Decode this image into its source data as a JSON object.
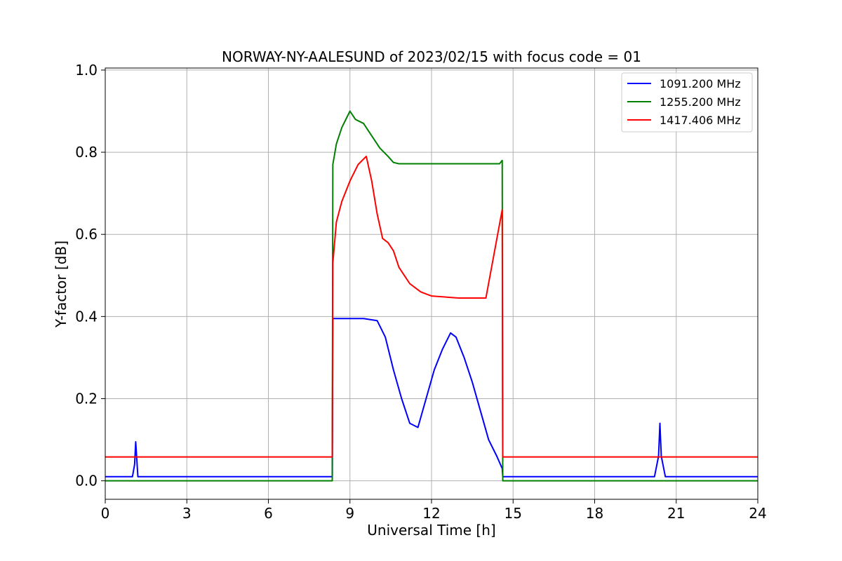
{
  "chart_data": {
    "type": "line",
    "title": "NORWAY-NY-AALESUND of 2023/02/15 with focus code = 01",
    "xlabel": "Universal Time [h]",
    "ylabel": "Y-factor [dB]",
    "xlim": [
      0,
      24
    ],
    "ylim": [
      -0.045,
      1.005
    ],
    "xticks": [
      0,
      3,
      6,
      9,
      12,
      15,
      18,
      21,
      24
    ],
    "yticks": [
      0.0,
      0.2,
      0.4,
      0.6,
      0.8,
      1.0
    ],
    "xtick_labels": [
      "0",
      "3",
      "6",
      "9",
      "12",
      "15",
      "18",
      "21",
      "24"
    ],
    "ytick_labels": [
      "0.0",
      "0.2",
      "0.4",
      "0.6",
      "0.8",
      "1.0"
    ],
    "grid": true,
    "legend_position": "top-right",
    "series": [
      {
        "name": "1091.200 MHz",
        "color": "#0000ff",
        "x": [
          0,
          1.0,
          1.08,
          1.12,
          1.2,
          8.35,
          8.37,
          8.5,
          9.0,
          9.5,
          10.0,
          10.3,
          10.6,
          10.9,
          11.2,
          11.5,
          11.8,
          12.1,
          12.4,
          12.7,
          12.9,
          13.2,
          13.5,
          13.8,
          14.1,
          14.4,
          14.6,
          14.62,
          14.65,
          20.2,
          20.35,
          20.4,
          20.45,
          20.6,
          24
        ],
        "y": [
          0.01,
          0.01,
          0.04,
          0.095,
          0.01,
          0.01,
          0.395,
          0.395,
          0.395,
          0.395,
          0.39,
          0.35,
          0.27,
          0.2,
          0.14,
          0.13,
          0.2,
          0.27,
          0.32,
          0.36,
          0.35,
          0.3,
          0.24,
          0.17,
          0.1,
          0.06,
          0.03,
          0.01,
          0.01,
          0.01,
          0.06,
          0.14,
          0.06,
          0.01,
          0.01
        ]
      },
      {
        "name": "1255.200 MHz",
        "color": "#008000",
        "x": [
          0,
          8.35,
          8.37,
          8.5,
          8.7,
          9.0,
          9.2,
          9.5,
          9.8,
          10.1,
          10.4,
          10.6,
          10.8,
          11.0,
          12.0,
          13.0,
          14.0,
          14.5,
          14.6,
          14.62,
          14.65,
          24
        ],
        "y": [
          0.0,
          0.0,
          0.77,
          0.82,
          0.86,
          0.9,
          0.88,
          0.87,
          0.84,
          0.81,
          0.79,
          0.775,
          0.772,
          0.772,
          0.772,
          0.772,
          0.772,
          0.772,
          0.78,
          0.0,
          0.0,
          0.0
        ]
      },
      {
        "name": "1417.406 MHz",
        "color": "#ff0000",
        "x": [
          0,
          8.35,
          8.37,
          8.5,
          8.7,
          9.0,
          9.3,
          9.6,
          9.8,
          10.0,
          10.2,
          10.4,
          10.6,
          10.8,
          11.0,
          11.2,
          11.4,
          11.6,
          11.8,
          12.0,
          13.0,
          14.0,
          14.6,
          14.62,
          14.65,
          24
        ],
        "y": [
          0.058,
          0.058,
          0.53,
          0.63,
          0.68,
          0.73,
          0.77,
          0.79,
          0.73,
          0.65,
          0.59,
          0.58,
          0.56,
          0.52,
          0.5,
          0.48,
          0.47,
          0.46,
          0.455,
          0.45,
          0.445,
          0.445,
          0.66,
          0.058,
          0.058,
          0.058
        ]
      }
    ]
  }
}
